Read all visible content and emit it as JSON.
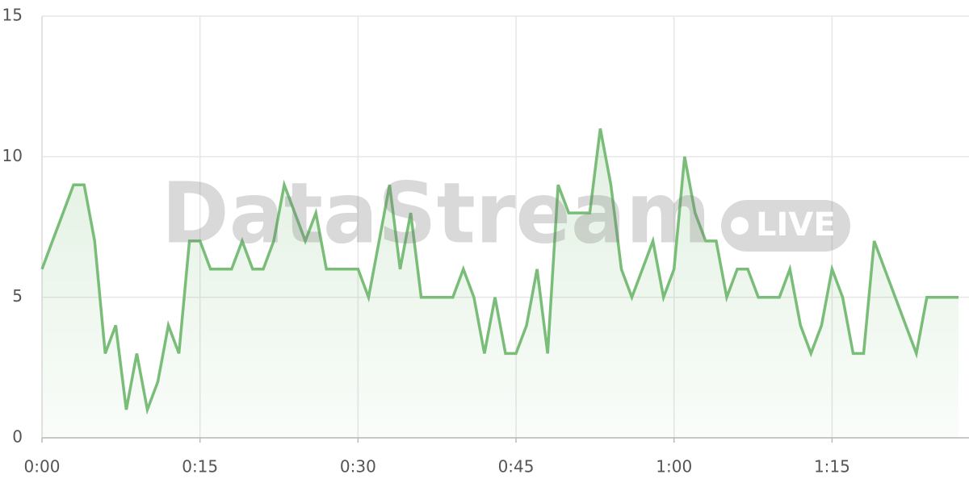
{
  "chart_data": {
    "type": "line",
    "x": [
      0,
      1,
      2,
      3,
      4,
      5,
      6,
      7,
      8,
      9,
      10,
      11,
      12,
      13,
      14,
      15,
      16,
      17,
      18,
      19,
      20,
      21,
      22,
      23,
      24,
      25,
      26,
      27,
      28,
      29,
      30,
      31,
      32,
      33,
      34,
      35,
      36,
      37,
      38,
      39,
      40,
      41,
      42,
      43,
      44,
      45,
      46,
      47,
      48,
      49,
      50,
      51,
      52,
      53,
      54,
      55,
      56,
      57,
      58,
      59,
      60,
      61,
      62,
      63,
      64,
      65,
      66,
      67,
      68,
      69,
      70,
      71,
      72,
      73,
      74,
      75,
      76,
      77,
      78,
      79,
      80,
      81,
      82,
      83,
      84,
      85,
      86,
      87
    ],
    "series": [
      {
        "color": "#79bd79",
        "values": [
          6,
          7,
          8,
          9,
          9,
          7,
          3,
          4,
          1,
          3,
          1,
          2,
          4,
          3,
          7,
          7,
          6,
          6,
          6,
          7,
          6,
          6,
          7,
          9,
          8,
          7,
          8,
          6,
          6,
          6,
          6,
          5,
          7,
          9,
          6,
          8,
          5,
          5,
          5,
          5,
          6,
          5,
          3,
          5,
          3,
          3,
          4,
          6,
          3,
          9,
          8,
          8,
          8,
          11,
          9,
          6,
          5,
          6,
          7,
          5,
          6,
          10,
          8,
          7,
          7,
          5,
          6,
          6,
          5,
          5,
          5,
          6,
          4,
          3,
          4,
          6,
          5,
          3,
          3,
          7,
          6,
          5,
          4,
          3,
          5,
          5,
          5,
          5
        ]
      }
    ],
    "xlim": [
      0,
      88
    ],
    "xticks": [
      {
        "value": 0,
        "label": "0:00"
      },
      {
        "value": 15,
        "label": "0:15"
      },
      {
        "value": 30,
        "label": "0:30"
      },
      {
        "value": 45,
        "label": "0:45"
      },
      {
        "value": 60,
        "label": "1:00"
      },
      {
        "value": 75,
        "label": "1:15"
      }
    ],
    "ylim": [
      0,
      15
    ],
    "yticks": [
      0,
      5,
      10,
      15
    ],
    "grid": true,
    "watermark": {
      "brand": "DataStream",
      "badge": "LIVE"
    }
  }
}
